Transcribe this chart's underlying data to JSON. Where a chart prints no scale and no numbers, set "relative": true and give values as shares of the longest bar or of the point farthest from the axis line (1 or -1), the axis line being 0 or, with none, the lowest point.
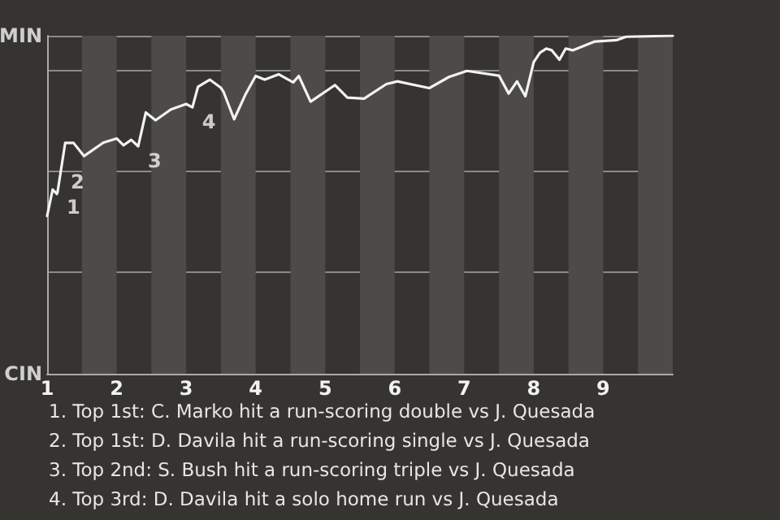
{
  "chart_data": {
    "type": "line",
    "x": [
      1.0,
      1.08,
      1.14,
      1.15,
      1.26,
      1.38,
      1.53,
      1.81,
      2.0,
      2.1,
      2.21,
      2.31,
      2.42,
      2.56,
      2.78,
      3.0,
      3.09,
      3.17,
      3.34,
      3.5,
      3.54,
      3.69,
      3.85,
      4.0,
      4.13,
      4.33,
      4.54,
      4.62,
      4.79,
      5.14,
      5.32,
      5.56,
      5.88,
      6.04,
      6.5,
      6.78,
      7.04,
      7.5,
      7.64,
      7.76,
      7.88,
      8.0,
      8.09,
      8.18,
      8.26,
      8.37,
      8.46,
      8.56,
      8.88,
      9.19,
      9.33,
      10.0
    ],
    "series": [
      {
        "color": "#f2f2f2",
        "values": [
          0.467,
          0.545,
          0.532,
          0.537,
          0.683,
          0.683,
          0.644,
          0.684,
          0.696,
          0.676,
          0.692,
          0.673,
          0.773,
          0.75,
          0.782,
          0.798,
          0.788,
          0.849,
          0.87,
          0.846,
          0.833,
          0.753,
          0.825,
          0.881,
          0.87,
          0.886,
          0.862,
          0.881,
          0.805,
          0.854,
          0.817,
          0.814,
          0.857,
          0.865,
          0.845,
          0.878,
          0.896,
          0.882,
          0.829,
          0.865,
          0.821,
          0.922,
          0.95,
          0.962,
          0.957,
          0.929,
          0.962,
          0.957,
          0.983,
          0.987,
          0.997,
          1.0
        ]
      }
    ],
    "relative": true,
    "xlim": [
      1,
      10
    ],
    "xticks": [
      1,
      2,
      3,
      4,
      5,
      6,
      7,
      8,
      9
    ],
    "grid": "y",
    "marker": "none",
    "line_style": "solid",
    "bands": [
      {
        "axis": "x",
        "from": 1.5,
        "to": 2,
        "color": "#4d4b48"
      },
      {
        "axis": "x",
        "from": 2.5,
        "to": 3,
        "color": "#4d4b48"
      },
      {
        "axis": "x",
        "from": 3.5,
        "to": 4,
        "color": "#4d4b48"
      },
      {
        "axis": "x",
        "from": 4.5,
        "to": 5,
        "color": "#4d4b48"
      },
      {
        "axis": "x",
        "from": 5.5,
        "to": 6,
        "color": "#4d4b48"
      },
      {
        "axis": "x",
        "from": 6.5,
        "to": 7,
        "color": "#4d4b48"
      },
      {
        "axis": "x",
        "from": 7.5,
        "to": 8,
        "color": "#4d4b48"
      },
      {
        "axis": "x",
        "from": 8.5,
        "to": 9,
        "color": "#4d4b48"
      },
      {
        "axis": "x",
        "from": 9.5,
        "to": 10,
        "color": "#4d4b48"
      }
    ],
    "annotations": [
      "MIN",
      "CIN",
      {
        "text": "1",
        "x": 1.14,
        "y": 0.537
      },
      {
        "text": "2",
        "x": 1.2,
        "y": 0.61
      },
      {
        "text": "3",
        "x": 2.31,
        "y": 0.673
      },
      {
        "text": "4",
        "x": 3.09,
        "y": 0.788
      },
      "1. Top 1st: C. Marko hit a run-scoring double vs J. Quesada",
      "2. Top 1st: D. Davila hit a run-scoring single vs J. Quesada",
      "3. Top 2nd: S. Bush hit a run-scoring triple vs J. Quesada",
      "4. Top 3rd: D. Davila hit a solo home run vs J. Quesada"
    ]
  }
}
